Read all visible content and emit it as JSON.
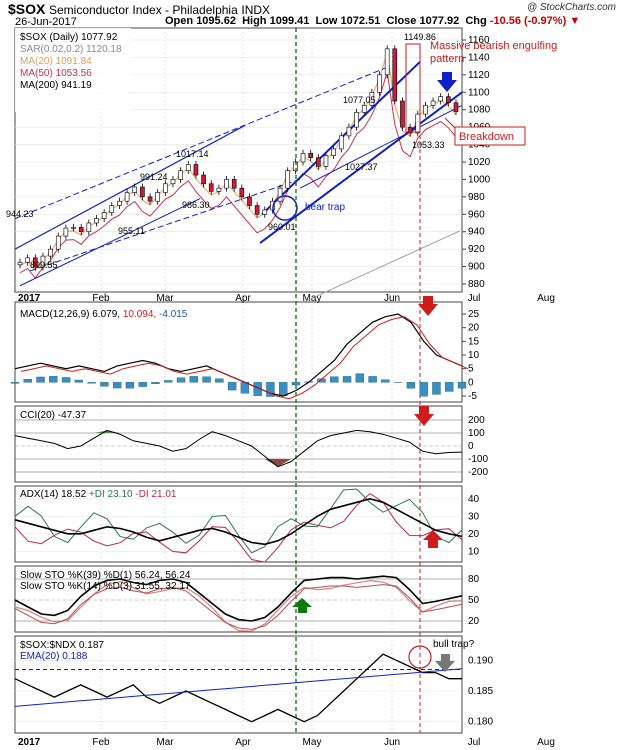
{
  "header": {
    "symbol": "$SOX",
    "name": "Semiconductor Index - Philadelphia",
    "exchange": "INDX",
    "source": "@ StockCharts.com",
    "date": "26-Jun-2017",
    "open_label": "Open",
    "open": "1095.62",
    "high_label": "High",
    "high": "1099.41",
    "low_label": "Low",
    "low": "1072.51",
    "close_label": "Close",
    "close": "1077.92",
    "chg_label": "Chg",
    "chg": "-10.56 (-0.97%)"
  },
  "colors": {
    "up": "#ffffff",
    "down": "#cc1c3c",
    "trend": "#1020c8",
    "ma20": "#e8b070",
    "ma50": "#c83050",
    "ma200": "#a0a0a0",
    "macd_hist": "#3a8fc0",
    "cci_fill_pos": "#5a8a5a",
    "cci_fill_neg": "#8a4a4a",
    "pdi": "#2a7a4a",
    "mdi": "#b82850",
    "green_line": "#0a6a0a",
    "red_line": "#cc1c1c"
  },
  "panels": {
    "price": {
      "legend": [
        {
          "text": "$SOX (Daily) 1077.92",
          "color": "#000"
        },
        {
          "text": "SAR(0.02,0.2) 1120.18",
          "color": "#888"
        },
        {
          "text": "MA(20) 1091.84",
          "color": "#d9a050"
        },
        {
          "text": "MA(50) 1053.56",
          "color": "#c83050"
        },
        {
          "text": "MA(200) 941.19",
          "color": "#000"
        }
      ],
      "y_ticks": [
        "1160",
        "1140",
        "1120",
        "1100",
        "1080",
        "1060",
        "1040",
        "1020",
        "1000",
        "980",
        "960",
        "940",
        "920",
        "900",
        "880"
      ],
      "annotations": {
        "massive": "Massive bearish engulfing",
        "pattern": "pattern",
        "breakdown": "Breakdown",
        "beartrap": "bear trap"
      },
      "value_labels": [
        "944.23",
        "899.55",
        "991.24",
        "955.11",
        "1017.14",
        "986.30",
        "960.01",
        "1077.05",
        "1027.37",
        "1149.86",
        "1053.33"
      ]
    },
    "macd": {
      "legend_prefix": "MACD(12,26,9)",
      "v1": "6.079,",
      "v2": "10.094,",
      "v3": "-4.015",
      "y_ticks": [
        "25",
        "20",
        "15",
        "10",
        "5",
        "0",
        "-5"
      ]
    },
    "cci": {
      "legend_prefix": "CCI(20)",
      "v1": "-47.37",
      "y_ticks": [
        "200",
        "100",
        "0",
        "-100",
        "-200"
      ]
    },
    "adx": {
      "legend_prefix": "ADX(14)",
      "v1": "18.52",
      "pdi": "+DI 23.10",
      "mdi": "-DI 21.01",
      "y_ticks": [
        "40",
        "30",
        "20",
        "10"
      ]
    },
    "sto": {
      "legend1": "Slow STO %K(39) %D(1)",
      "v1": "56.24,",
      "v2": "56.24",
      "legend2": "Slow STO %K(14) %D(3)",
      "v3": "31.55,",
      "v4": "32.17",
      "y_ticks": [
        "80",
        "50",
        "20"
      ]
    },
    "ratio": {
      "legend1": "$SOX:$NDX",
      "v1": "0.187",
      "legend2": "EMA(20)",
      "v2": "0.188",
      "bulltrap": "bull trap?",
      "y_ticks": [
        "0.190",
        "0.185",
        "0.180"
      ]
    }
  },
  "x_axis": {
    "labels": [
      "2017",
      "Feb",
      "Mar",
      "Apr",
      "May",
      "Jun",
      "Jul",
      "Aug"
    ]
  },
  "chart_data": {
    "type": "candlestick",
    "title": "$SOX Semiconductor Index - Philadelphia INDX",
    "series": [
      {
        "name": "$SOX (Daily)",
        "close": [
          905,
          910,
          899.55,
          912,
          920,
          935,
          944.23,
          945,
          940,
          950,
          955.11,
          962,
          970,
          975,
          985,
          991.24,
          980,
          975,
          985,
          995,
          1000,
          1010,
          1017.14,
          1005,
          995,
          986.3,
          990,
          1000,
          990,
          980,
          970,
          960.01,
          965,
          975,
          990,
          1010,
          1020,
          1030,
          1025,
          1015,
          1027.37,
          1035,
          1050,
          1060,
          1077.05,
          1085,
          1100,
          1120,
          1149.86,
          1090,
          1060,
          1053.33,
          1075,
          1085,
          1090,
          1095,
          1088,
          1077.92
        ]
      },
      {
        "name": "MA(200)",
        "close": [
          860,
          863,
          866,
          869,
          872,
          875,
          878,
          881,
          884,
          887,
          890,
          893,
          896,
          899,
          902,
          905,
          908,
          911,
          914,
          917,
          920,
          923,
          926,
          929,
          932,
          935,
          938,
          941.19
        ]
      }
    ],
    "macd": {
      "macd": 6.079,
      "signal": 10.094,
      "hist": -4.015
    },
    "cci": -47.37,
    "adx": {
      "adx": 18.52,
      "pdi": 23.1,
      "mdi": 21.01
    },
    "slow_sto": [
      {
        "k": 56.24,
        "d": 56.24
      },
      {
        "k": 31.55,
        "d": 32.17
      }
    ],
    "ratio": {
      "sox_ndx": 0.187,
      "ema20": 0.188
    }
  }
}
